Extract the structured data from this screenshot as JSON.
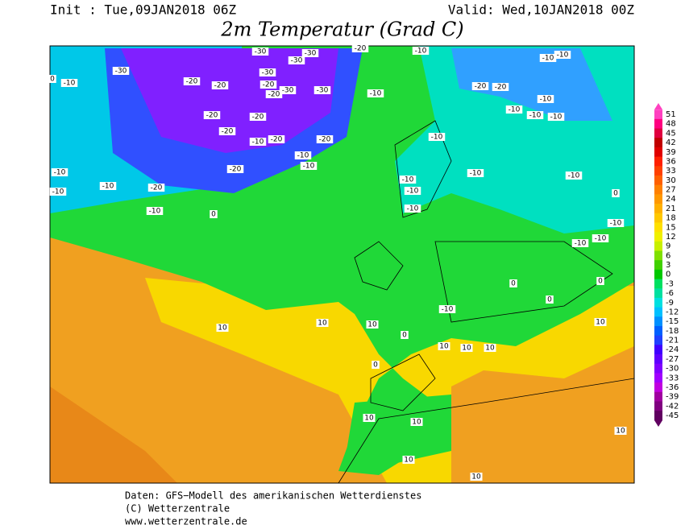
{
  "header": {
    "init": "Init : Tue,09JAN2018 06Z",
    "valid": "Valid: Wed,10JAN2018 00Z",
    "title": "2m Temperatur (Grad C)"
  },
  "colorbar": {
    "levels": [
      "51",
      "48",
      "45",
      "42",
      "39",
      "36",
      "33",
      "30",
      "27",
      "24",
      "21",
      "18",
      "15",
      "12",
      "9",
      "6",
      "3",
      "0",
      "-3",
      "-6",
      "-9",
      "-12",
      "-15",
      "-18",
      "-21",
      "-24",
      "-27",
      "-30",
      "-33",
      "-36",
      "-39",
      "-42",
      "-45"
    ],
    "colors": [
      "#ff40c0",
      "#ff0080",
      "#e00040",
      "#c00000",
      "#e00000",
      "#ff2000",
      "#ff4000",
      "#ff6000",
      "#ff8000",
      "#ff9800",
      "#ffb000",
      "#ffc800",
      "#ffe000",
      "#f0f000",
      "#c8f000",
      "#80e000",
      "#40d000",
      "#00c800",
      "#00e060",
      "#00e0a0",
      "#00e0e0",
      "#00c0ff",
      "#0090ff",
      "#0060ff",
      "#2040ff",
      "#4000ff",
      "#6000ff",
      "#8000ff",
      "#a000ff",
      "#c000e0",
      "#a000a0",
      "#800080",
      "#600060"
    ]
  },
  "map": {
    "labels": [
      "-30",
      "-30",
      "-30",
      "-30",
      "-30",
      "-30",
      "-30",
      "-20",
      "-20",
      "-20",
      "-20",
      "-20",
      "-20",
      "-20",
      "-20",
      "-20",
      "-20",
      "-20",
      "-20",
      "-20",
      "-20",
      "-10",
      "-10",
      "-10",
      "-10",
      "-10",
      "-10",
      "-10",
      "-10",
      "-10",
      "-10",
      "-10",
      "-10",
      "-10",
      "-10",
      "-10",
      "-10",
      "-10",
      "-10",
      "-10",
      "-10",
      "-10",
      "-10",
      "-10",
      "-10",
      "-10",
      "-10",
      "0",
      "0",
      "0",
      "0",
      "0",
      "0",
      "0",
      "0",
      "10",
      "10",
      "10",
      "10",
      "10",
      "10",
      "10",
      "10",
      "10",
      "10",
      "10",
      "10"
    ]
  },
  "footer": {
    "source": "Daten: GFS−Modell des amerikanischen Wetterdienstes",
    "copyright": "(C) Wetterzentrale",
    "url": "www.wetterzentrale.de"
  }
}
